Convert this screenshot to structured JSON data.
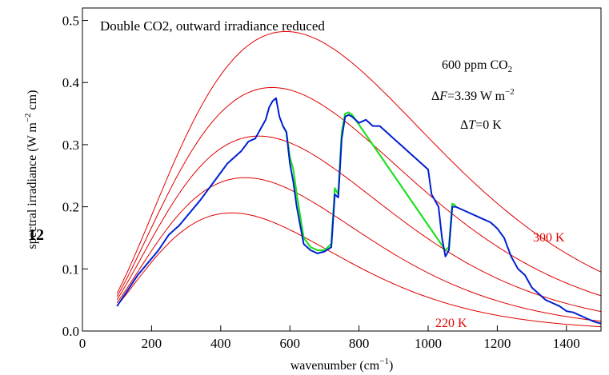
{
  "chart_data": {
    "type": "line",
    "title": "Double CO2, outward irradiance reduced",
    "xlabel": "wavenumber (cm",
    "xlabel_sup": "−1",
    "xlabel_tail": ")",
    "ylabel_main": "spectral irradiance (W  m",
    "ylabel_sup": "−2",
    "ylabel_tail": " cm)",
    "xlim": [
      0,
      1500
    ],
    "ylim": [
      0,
      0.52
    ],
    "xticks": [
      0,
      200,
      400,
      600,
      800,
      1000,
      1200,
      1400
    ],
    "yticks": [
      0.0,
      0.1,
      0.2,
      0.3,
      0.4,
      0.5
    ],
    "ytick_labels": [
      "0.0",
      "0.1",
      "0.2",
      "0.3",
      "0.4",
      "0.5"
    ],
    "grid": false,
    "annotations": {
      "co2_prefix": "600 ppm CO",
      "co2_sub": "2",
      "df_delta": "Δ",
      "df_var": "F",
      "df_rest": "=3.39 W m",
      "df_sup": "−2",
      "dt_delta": "Δ",
      "dt_var": "T",
      "dt_rest": "=0 K",
      "label_300": "300 K",
      "label_220": "220 K",
      "partial_left": "12"
    },
    "planck_temperatures_K": [
      220,
      240,
      260,
      280,
      300
    ],
    "colors": {
      "planck": "#e00000",
      "spectrum_new": "#0020d0",
      "spectrum_ref": "#20e020"
    },
    "series": [
      {
        "x": [
          100,
          130,
          160,
          190,
          220,
          250,
          280,
          310,
          340,
          360,
          380,
          400,
          420,
          440,
          460,
          480,
          500,
          510,
          520,
          530,
          540,
          550,
          560,
          570,
          580,
          590,
          600,
          610,
          620,
          640,
          660,
          680,
          700,
          720,
          730,
          740,
          750,
          760,
          770,
          780,
          800,
          820,
          840,
          860,
          880,
          900,
          920,
          940,
          960,
          980,
          1000,
          1010,
          1020,
          1030,
          1040,
          1050,
          1060,
          1070,
          1080,
          1100,
          1120,
          1140,
          1160,
          1180,
          1200,
          1220,
          1240,
          1260,
          1280,
          1300,
          1320,
          1340,
          1360,
          1380,
          1400,
          1420,
          1440,
          1460,
          1480,
          1500
        ],
        "y": [
          0.04,
          0.065,
          0.09,
          0.11,
          0.13,
          0.155,
          0.17,
          0.19,
          0.21,
          0.225,
          0.24,
          0.255,
          0.27,
          0.28,
          0.29,
          0.305,
          0.31,
          0.32,
          0.33,
          0.34,
          0.36,
          0.37,
          0.375,
          0.345,
          0.33,
          0.32,
          0.27,
          0.24,
          0.2,
          0.14,
          0.13,
          0.125,
          0.128,
          0.135,
          0.22,
          0.215,
          0.31,
          0.345,
          0.348,
          0.345,
          0.335,
          0.34,
          0.33,
          0.33,
          0.32,
          0.31,
          0.3,
          0.29,
          0.28,
          0.27,
          0.26,
          0.22,
          0.21,
          0.2,
          0.15,
          0.12,
          0.13,
          0.2,
          0.2,
          0.195,
          0.19,
          0.185,
          0.18,
          0.175,
          0.165,
          0.15,
          0.12,
          0.1,
          0.09,
          0.07,
          0.06,
          0.05,
          0.045,
          0.04,
          0.032,
          0.03,
          0.025,
          0.02,
          0.015,
          0.012
        ]
      },
      {
        "x": [
          580,
          590,
          600,
          610,
          620,
          640,
          660,
          680,
          700,
          720,
          730,
          740,
          750,
          760,
          770,
          780,
          790,
          1050,
          1060,
          1070,
          1080
        ],
        "y": [
          0.33,
          0.32,
          0.28,
          0.26,
          0.22,
          0.15,
          0.135,
          0.13,
          0.13,
          0.14,
          0.23,
          0.22,
          0.32,
          0.35,
          0.352,
          0.348,
          0.34,
          0.13,
          0.135,
          0.205,
          0.202
        ]
      }
    ]
  }
}
